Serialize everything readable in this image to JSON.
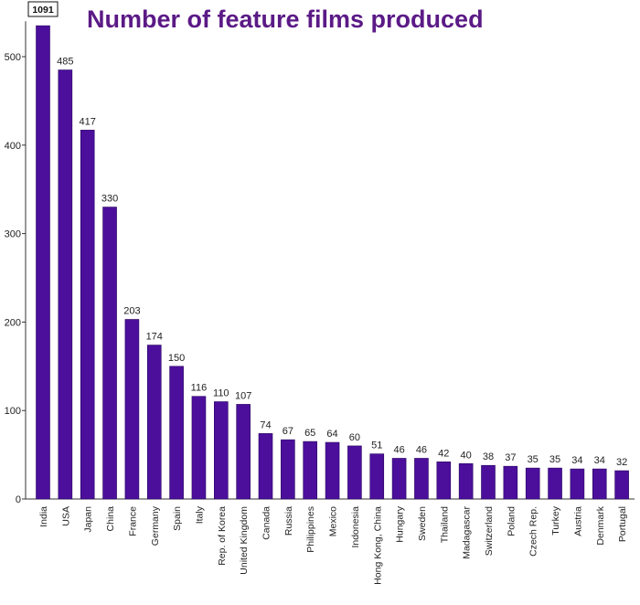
{
  "chart_data": {
    "type": "bar",
    "title": "Number of feature films produced",
    "xlabel": "",
    "ylabel": "",
    "ylim": [
      0,
      540
    ],
    "yticks": [
      0,
      100,
      200,
      300,
      400,
      500
    ],
    "grid": false,
    "legend": "none",
    "bar_color": "#4b0f9c",
    "categories": [
      "India",
      "USA",
      "Japan",
      "China",
      "France",
      "Germany",
      "Spain",
      "Italy",
      "Rep. of Korea",
      "United Kingdom",
      "Canada",
      "Russia",
      "Philippines",
      "Mexico",
      "Indonesia",
      "Hong Kong, China",
      "Hungary",
      "Sweden",
      "Thailand",
      "Madagascar",
      "Switzerland",
      "Poland",
      "Czech Rep.",
      "Turkey",
      "Austria",
      "Denmark",
      "Portugal"
    ],
    "values": [
      1091,
      485,
      417,
      330,
      203,
      174,
      150,
      116,
      110,
      107,
      74,
      67,
      65,
      64,
      60,
      51,
      46,
      46,
      42,
      40,
      38,
      37,
      35,
      35,
      34,
      34,
      32
    ],
    "value_labels": [
      "1091",
      "485",
      "417",
      "330",
      "203",
      "174",
      "150",
      "116",
      "110",
      "107",
      "74",
      "67",
      "65",
      "64",
      "60",
      "51",
      "46",
      "46",
      "42",
      "40",
      "38",
      "37",
      "35",
      "35",
      "34",
      "34",
      "32"
    ],
    "boxed_label_index": 0
  }
}
